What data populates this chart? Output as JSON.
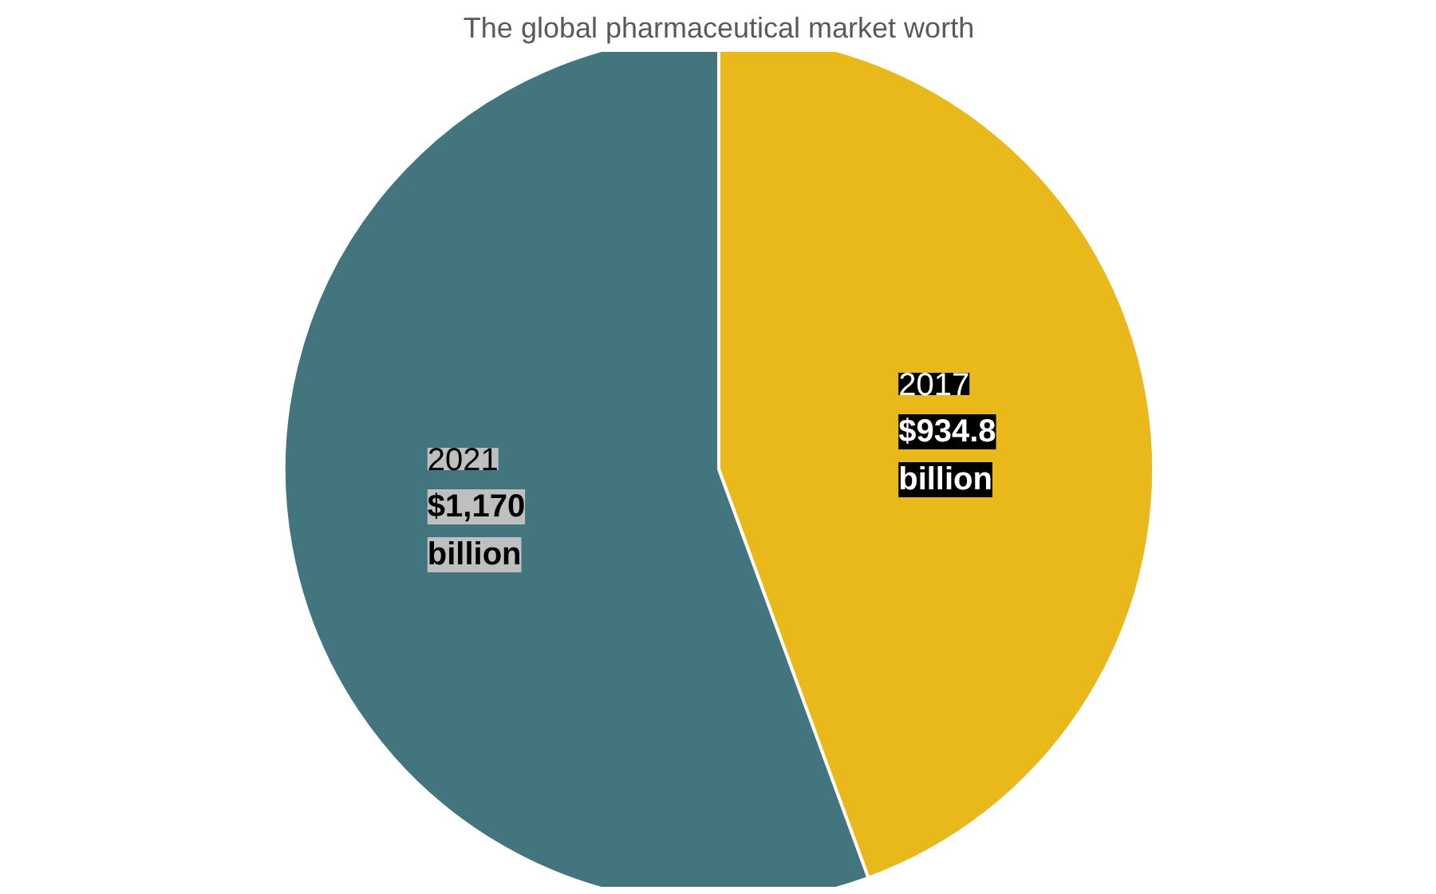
{
  "chart_data": {
    "type": "pie",
    "title": "The global pharmaceutical market worth",
    "categories": [
      "2017",
      "2021"
    ],
    "values": [
      934.8,
      1170
    ],
    "colors": [
      "#e9b91b",
      "#43757f"
    ],
    "value_labels": [
      "$934.8 billion",
      "$1,170 billion"
    ]
  }
}
